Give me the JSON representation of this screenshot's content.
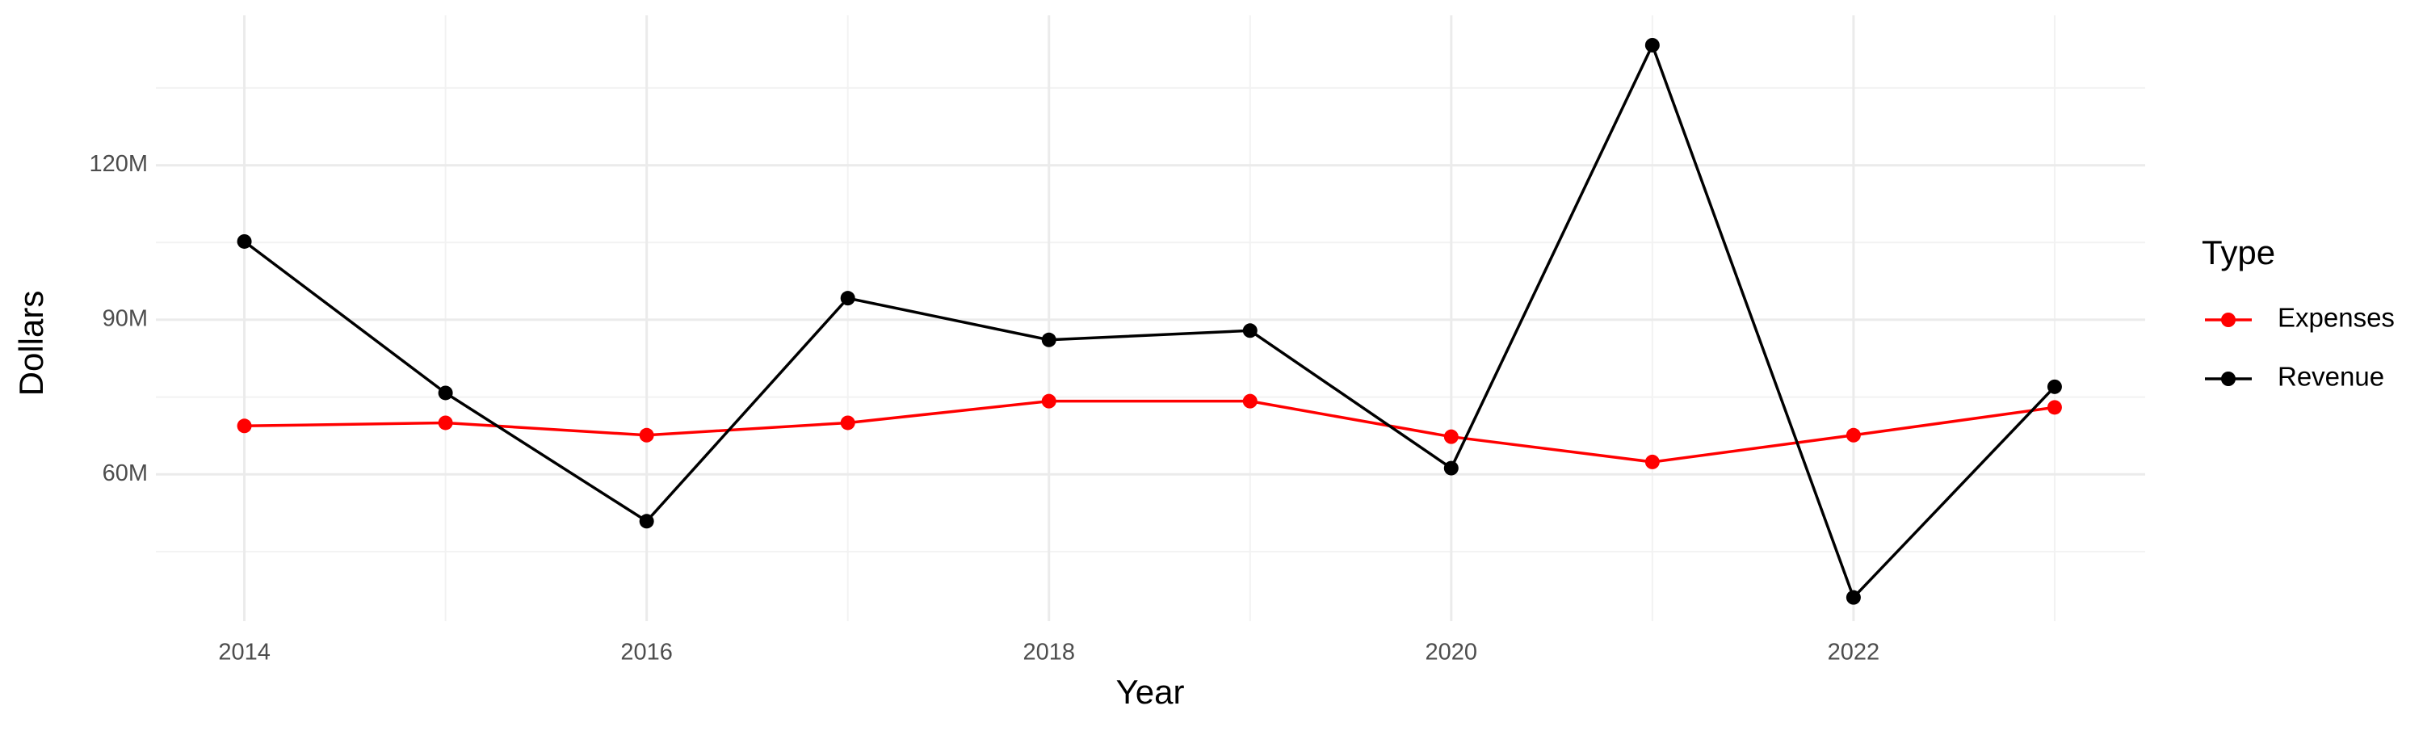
{
  "chart_data": {
    "type": "line",
    "x_label": "Year",
    "y_label": "Dollars",
    "legend_title": "Type",
    "x": [
      2014,
      2015,
      2016,
      2017,
      2018,
      2019,
      2020,
      2021,
      2022,
      2023
    ],
    "series": [
      {
        "name": "Expenses",
        "color": "#ff0000",
        "values": [
          69.4,
          70.0,
          67.6,
          70.0,
          74.2,
          74.2,
          67.3,
          62.4,
          67.6,
          73.0
        ]
      },
      {
        "name": "Revenue",
        "color": "#000000",
        "values": [
          105.2,
          75.8,
          50.9,
          94.2,
          86.1,
          87.9,
          61.2,
          143.3,
          36.1,
          77.0
        ]
      }
    ],
    "xlim": [
      2013.56,
      2023.45
    ],
    "xticks": [
      2014,
      2016,
      2018,
      2020,
      2022
    ],
    "x_minor_ticks": [
      2015,
      2017,
      2019,
      2021,
      2023
    ],
    "ylim": [
      31.5,
      149.1
    ],
    "yticks": [
      {
        "value": 60,
        "label": "60M"
      },
      {
        "value": 90,
        "label": "90M"
      },
      {
        "value": 120,
        "label": "120M"
      }
    ],
    "y_minor_ticks": [
      45,
      75,
      105,
      135
    ],
    "grid": true,
    "legend_position": "right"
  }
}
